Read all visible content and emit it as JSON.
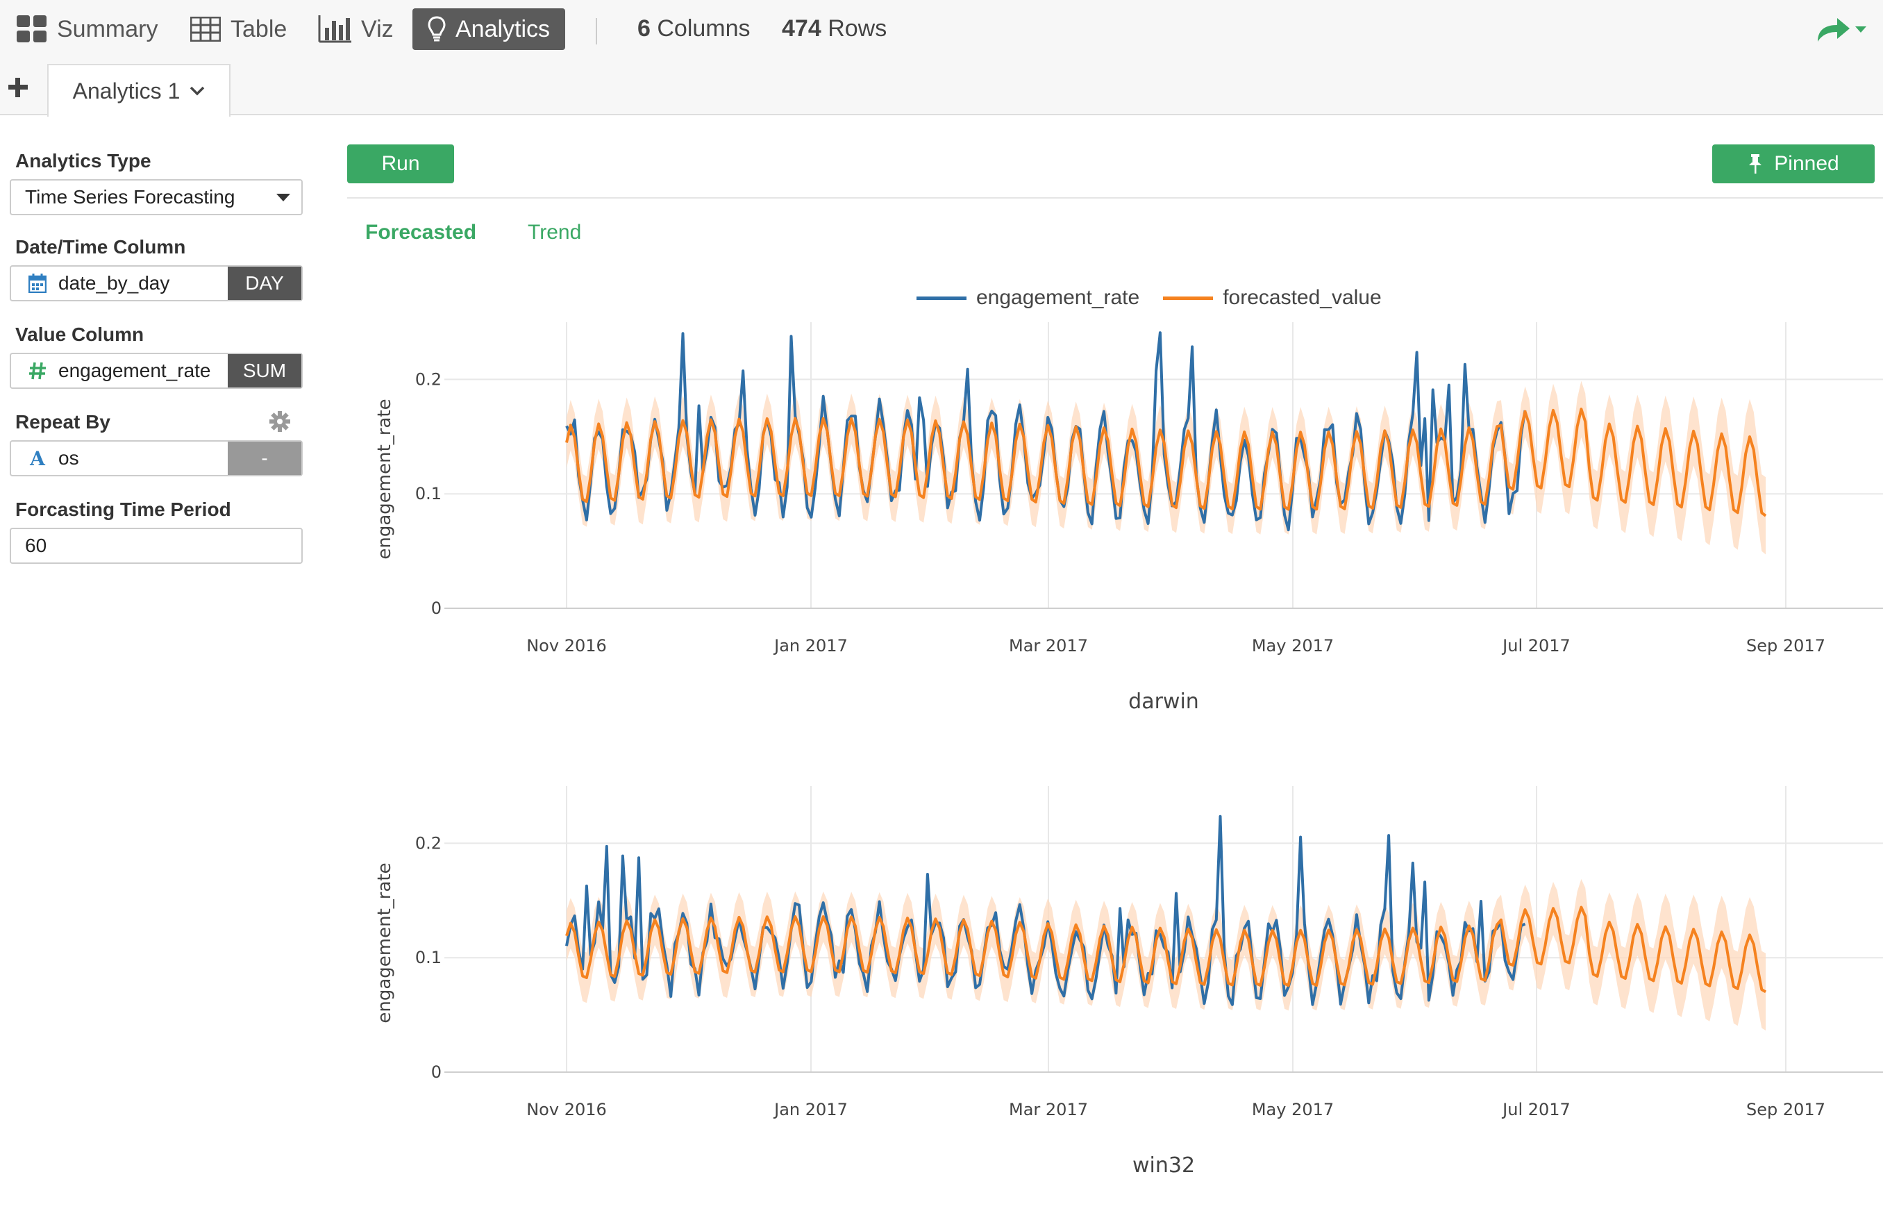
{
  "nav": {
    "summary": "Summary",
    "table": "Table",
    "viz": "Viz",
    "analytics": "Analytics",
    "columns_count": "6",
    "columns_label": "Columns",
    "rows_count": "474",
    "rows_label": "Rows"
  },
  "tabs": {
    "current": "Analytics 1"
  },
  "sidebar": {
    "analytics_type_label": "Analytics Type",
    "analytics_type_value": "Time Series Forecasting",
    "date_column_label": "Date/Time Column",
    "date_column_value": "date_by_day",
    "date_unit": "DAY",
    "value_column_label": "Value Column",
    "value_column_value": "engagement_rate",
    "value_agg": "SUM",
    "repeat_by_label": "Repeat By",
    "repeat_by_value": "os",
    "repeat_by_extra": "-",
    "period_label": "Forcasting Time Period",
    "period_value": "60"
  },
  "main": {
    "run_label": "Run",
    "pinned_label": "Pinned",
    "subtab_forecasted": "Forecasted",
    "subtab_trend": "Trend"
  },
  "colors": {
    "accent": "#3aa864",
    "actual": "#2f6fa7",
    "forecast": "#f5821f",
    "band": "#fdd9bd"
  },
  "chart_data": [
    {
      "type": "line",
      "facet": "darwin",
      "ylabel": "engagement_rate",
      "xlabel": "",
      "x_ticks": [
        "Nov 2016",
        "Jan 2017",
        "Mar 2017",
        "May 2017",
        "Jul 2017",
        "Sep 2017"
      ],
      "y_ticks": [
        "0",
        "0.1",
        "0.2"
      ],
      "ylim": [
        0,
        0.25
      ],
      "x_range": [
        "2016-11-01",
        "2017-09-01"
      ],
      "legend": "top-center",
      "series": [
        {
          "name": "engagement_rate",
          "start": "2016-11-01",
          "end": "2017-06-28",
          "mean": 0.125,
          "amplitude": 0.04,
          "weekly": true
        },
        {
          "name": "forecasted_value",
          "start": "2016-11-01",
          "end": "2017-08-27",
          "mean": 0.125,
          "amplitude": 0.035,
          "weekly": true,
          "confidence_band": true
        }
      ]
    },
    {
      "type": "line",
      "facet": "win32",
      "ylabel": "engagement_rate",
      "xlabel": "",
      "x_ticks": [
        "Nov 2016",
        "Jan 2017",
        "Mar 2017",
        "May 2017",
        "Jul 2017",
        "Sep 2017"
      ],
      "y_ticks": [
        "0",
        "0.1",
        "0.2"
      ],
      "ylim": [
        0,
        0.25
      ],
      "x_range": [
        "2016-11-01",
        "2017-09-01"
      ],
      "legend": "top-center",
      "series": [
        {
          "name": "engagement_rate",
          "start": "2016-11-01",
          "end": "2017-06-28",
          "mean": 0.105,
          "amplitude": 0.03,
          "weekly": true
        },
        {
          "name": "forecasted_value",
          "start": "2016-11-01",
          "end": "2017-08-27",
          "mean": 0.105,
          "amplitude": 0.025,
          "weekly": true,
          "confidence_band": true
        }
      ]
    }
  ]
}
